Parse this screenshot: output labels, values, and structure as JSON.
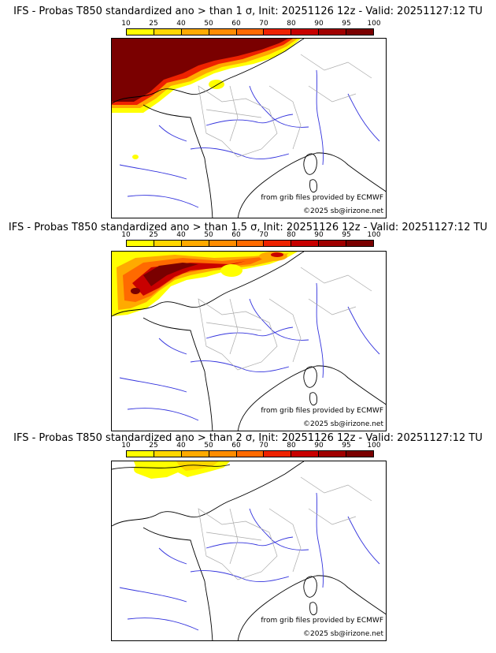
{
  "panels": [
    {
      "title": "IFS - Probas T850  standardized ano > than 1 σ, Init: 20251126 12z - Valid: 20251127:12 TU",
      "credit_grib": "from grib files provided by ECMWF",
      "credit_site": "©2025 sb@irizone.net"
    },
    {
      "title": "IFS - Probas T850  standardized ano > than 1.5 σ, Init: 20251126 12z - Valid: 20251127:12 TU",
      "credit_grib": "from grib files provided by ECMWF",
      "credit_site": "©2025 sb@irizone.net"
    },
    {
      "title": "IFS - Probas T850  standardized ano > than 2 σ, Init: 20251126 12z - Valid: 20251127:12 TU",
      "credit_grib": "from grib files provided by ECMWF",
      "credit_site": "©2025 sb@irizone.net"
    }
  ],
  "colorbar": {
    "labels": [
      "10",
      "25",
      "40",
      "50",
      "60",
      "70",
      "80",
      "90",
      "95",
      "100"
    ],
    "colors": [
      "#ffff00",
      "#ffd700",
      "#ffaa00",
      "#ff8c00",
      "#ff6a00",
      "#ee2200",
      "#c80000",
      "#a00000",
      "#7a0000"
    ]
  },
  "map_colors": {
    "coast": "#000000",
    "rivers": "#3333dd",
    "borders": "#aaaaaa"
  }
}
